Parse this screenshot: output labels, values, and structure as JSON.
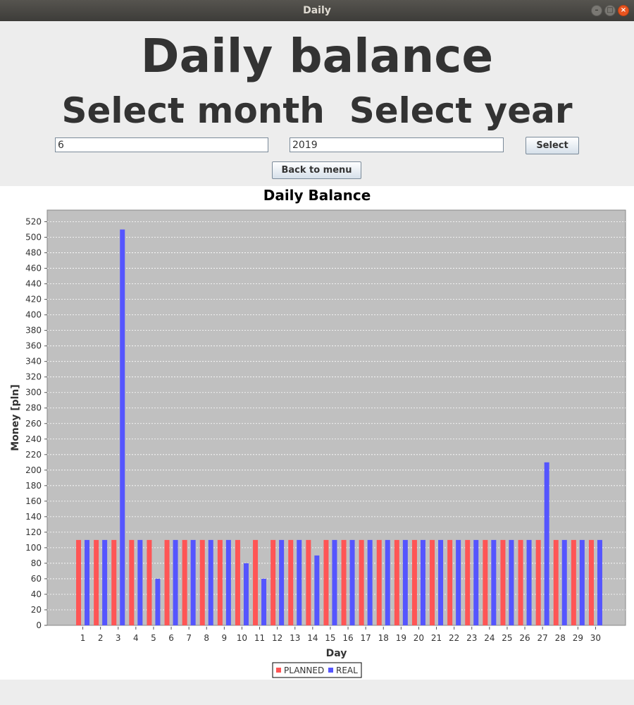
{
  "window": {
    "title": "Daily"
  },
  "header": {
    "title": "Daily balance",
    "select_labels": "Select month  Select year"
  },
  "form": {
    "month_value": "6",
    "year_value": "2019",
    "select_label": "Select",
    "back_label": "Back to menu"
  },
  "colors": {
    "planned": "#ff5555",
    "real": "#5555ff",
    "plot_bg": "#c0c0c0"
  },
  "chart_data": {
    "type": "bar",
    "title": "Daily Balance",
    "xlabel": "Day",
    "ylabel": "Money [pln]",
    "ylim": [
      0,
      535
    ],
    "yticks": [
      0,
      20,
      40,
      60,
      80,
      100,
      120,
      140,
      160,
      180,
      200,
      220,
      240,
      260,
      280,
      300,
      320,
      340,
      360,
      380,
      400,
      420,
      440,
      460,
      480,
      500,
      520
    ],
    "grid": true,
    "legend_position": "bottom",
    "categories": [
      "1",
      "2",
      "3",
      "4",
      "5",
      "6",
      "7",
      "8",
      "9",
      "10",
      "11",
      "12",
      "13",
      "14",
      "15",
      "16",
      "17",
      "18",
      "19",
      "20",
      "21",
      "22",
      "23",
      "24",
      "25",
      "26",
      "27",
      "28",
      "29",
      "30"
    ],
    "series": [
      {
        "name": "PLANNED",
        "values": [
          110,
          110,
          110,
          110,
          110,
          110,
          110,
          110,
          110,
          110,
          110,
          110,
          110,
          110,
          110,
          110,
          110,
          110,
          110,
          110,
          110,
          110,
          110,
          110,
          110,
          110,
          110,
          110,
          110,
          110
        ]
      },
      {
        "name": "REAL",
        "values": [
          110,
          110,
          510,
          110,
          60,
          110,
          110,
          110,
          110,
          80,
          60,
          110,
          110,
          90,
          110,
          110,
          110,
          110,
          110,
          110,
          110,
          110,
          110,
          110,
          110,
          110,
          210,
          110,
          110,
          110
        ]
      }
    ]
  }
}
